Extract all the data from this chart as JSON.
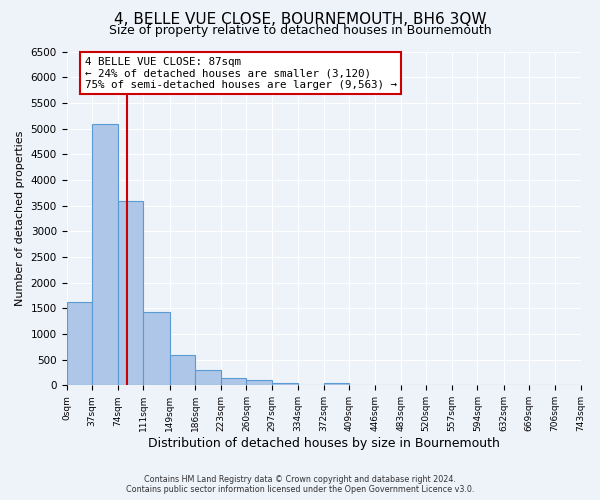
{
  "title": "4, BELLE VUE CLOSE, BOURNEMOUTH, BH6 3QW",
  "subtitle": "Size of property relative to detached houses in Bournemouth",
  "xlabel": "Distribution of detached houses by size in Bournemouth",
  "ylabel": "Number of detached properties",
  "bin_edges": [
    0,
    37,
    74,
    111,
    149,
    186,
    223,
    260,
    297,
    334,
    372,
    409,
    446,
    483,
    520,
    557,
    594,
    632,
    669,
    706,
    743
  ],
  "bar_heights": [
    1620,
    5080,
    3580,
    1430,
    590,
    300,
    150,
    100,
    50,
    0,
    50,
    0,
    0,
    0,
    0,
    0,
    0,
    0,
    0,
    0
  ],
  "bar_color": "#aec6e8",
  "bar_edge_color": "#5b9bd5",
  "property_line_x": 87,
  "property_line_color": "#cc0000",
  "annotation_text_line1": "4 BELLE VUE CLOSE: 87sqm",
  "annotation_text_line2": "← 24% of detached houses are smaller (3,120)",
  "annotation_text_line3": "75% of semi-detached houses are larger (9,563) →",
  "annotation_box_color": "#ffffff",
  "annotation_box_edge_color": "#cc0000",
  "ylim": [
    0,
    6500
  ],
  "yticks": [
    0,
    500,
    1000,
    1500,
    2000,
    2500,
    3000,
    3500,
    4000,
    4500,
    5000,
    5500,
    6000,
    6500
  ],
  "xtick_labels": [
    "0sqm",
    "37sqm",
    "74sqm",
    "111sqm",
    "149sqm",
    "186sqm",
    "223sqm",
    "260sqm",
    "297sqm",
    "334sqm",
    "372sqm",
    "409sqm",
    "446sqm",
    "483sqm",
    "520sqm",
    "557sqm",
    "594sqm",
    "632sqm",
    "669sqm",
    "706sqm",
    "743sqm"
  ],
  "footer_line1": "Contains HM Land Registry data © Crown copyright and database right 2024.",
  "footer_line2": "Contains public sector information licensed under the Open Government Licence v3.0.",
  "bg_color": "#eef2f9",
  "plot_bg_color": "#eef2f9",
  "grid_color": "#ffffff",
  "title_fontsize": 11,
  "subtitle_fontsize": 9,
  "xlabel_fontsize": 9,
  "ylabel_fontsize": 8
}
